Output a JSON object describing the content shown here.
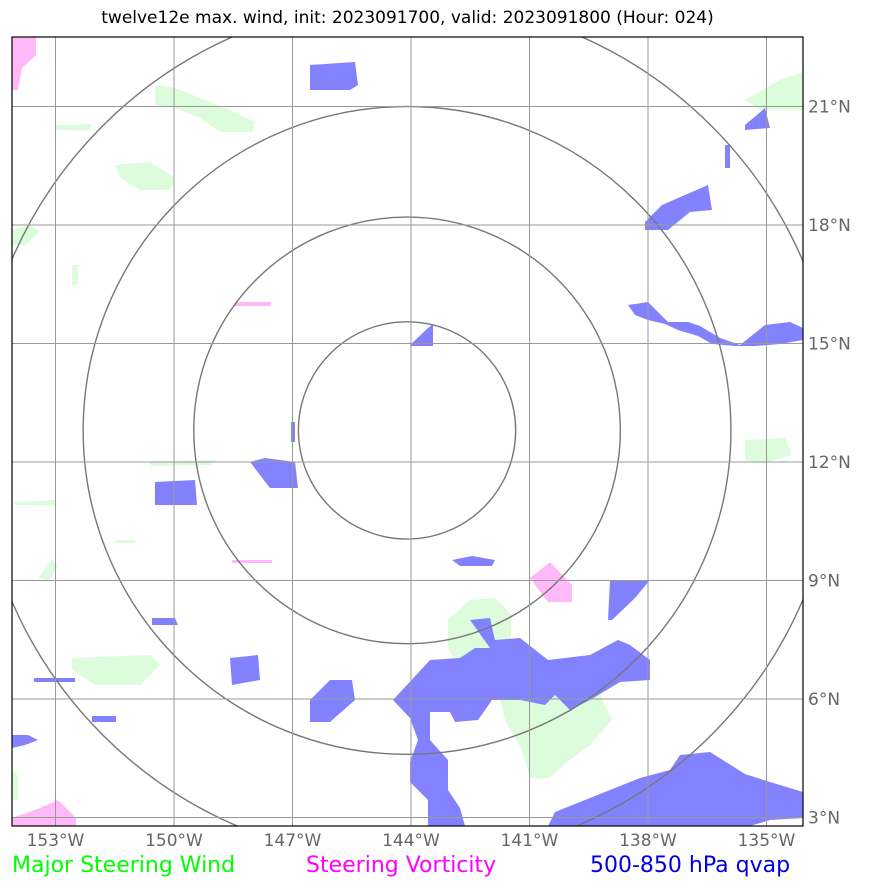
{
  "title": "twelve12e max. wind, init: 2023091700, valid: 2023091800 (Hour: 024)",
  "map": {
    "lon_ticks": [
      {
        "value": -153,
        "label": "153°W"
      },
      {
        "value": -150,
        "label": "150°W"
      },
      {
        "value": -147,
        "label": "147°W"
      },
      {
        "value": -144,
        "label": "144°W"
      },
      {
        "value": -141,
        "label": "141°W"
      },
      {
        "value": -138,
        "label": "138°W"
      },
      {
        "value": -135,
        "label": "135°W"
      }
    ],
    "lat_ticks": [
      {
        "value": 21,
        "label": "21°N"
      },
      {
        "value": 18,
        "label": "18°N"
      },
      {
        "value": 15,
        "label": "15°N"
      },
      {
        "value": 12,
        "label": "12°N"
      },
      {
        "value": 9,
        "label": "9°N"
      },
      {
        "value": 6,
        "label": "6°N"
      },
      {
        "value": 3,
        "label": "3°N"
      }
    ],
    "center": {
      "lon": -144.1,
      "lat": 12.8
    },
    "ring_radii_deg": [
      2.75,
      5.4,
      8.2,
      10.9
    ],
    "colors": {
      "wind": "#00ff00",
      "wind_fill": "#dcfcdc",
      "vorticity": "#ff00ff",
      "vorticity_fill": "#ffb8f8",
      "qvap": "#0000dd",
      "qvap_fill": "#7b7bff",
      "grid": "#999999",
      "rings": "#777777",
      "frame": "#000000"
    }
  },
  "legend": {
    "wind": "Major Steering Wind",
    "vorticity": "Steering Vorticity",
    "qvap": "500-850 hPa qvap"
  }
}
